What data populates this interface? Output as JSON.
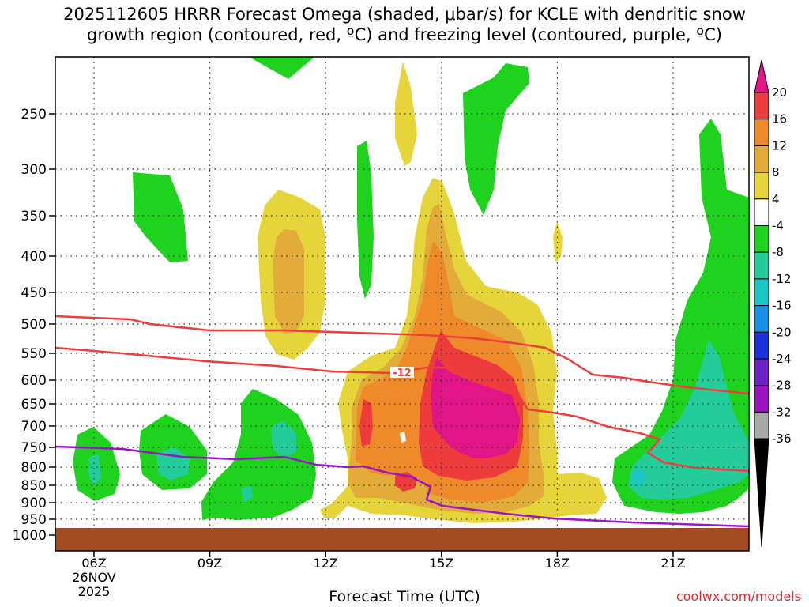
{
  "title": {
    "line1": "2025112605 HRRR Forecast Omega (shaded, μbar/s) for KCLE with dendritic snow",
    "line2": "growth region (contoured, red, ºC) and freezing level (contoured, purple, ºC)"
  },
  "watermark": "coolwx.com/models",
  "chart_data": {
    "type": "time-height cross section",
    "xlabel": "Forecast Time (UTC)",
    "x_ticks": [
      {
        "hour": 6,
        "label": "06Z",
        "date_line1": "26NOV",
        "date_line2": "2025"
      },
      {
        "hour": 9,
        "label": "09Z"
      },
      {
        "hour": 12,
        "label": "12Z"
      },
      {
        "hour": 15,
        "label": "15Z"
      },
      {
        "hour": 18,
        "label": "18Z"
      },
      {
        "hour": 21,
        "label": "21Z"
      }
    ],
    "xlim": [
      5,
      23
    ],
    "y_ticks": [
      250,
      300,
      350,
      400,
      450,
      500,
      550,
      600,
      650,
      700,
      750,
      800,
      850,
      900,
      950,
      1000
    ],
    "ylim_hpa": [
      200,
      1000
    ],
    "colorbar": {
      "labels": [
        "20",
        "16",
        "12",
        "8",
        "4",
        "-4",
        "-8",
        "-12",
        "-16",
        "-20",
        "-24",
        "-28",
        "-32",
        "-36"
      ],
      "colors": [
        "#e21586",
        "#ee3b3b",
        "#ef8a2b",
        "#e3ab3a",
        "#e6d53a",
        "#ffffff",
        "#1ed21e",
        "#24cc99",
        "#1bc7c5",
        "#1a8fe8",
        "#1a30d8",
        "#6c20c8",
        "#9b14c2",
        "#a9a9a9"
      ]
    },
    "dgz_contour_label": "-12",
    "ground_color": "#a24a22",
    "grid": true
  }
}
